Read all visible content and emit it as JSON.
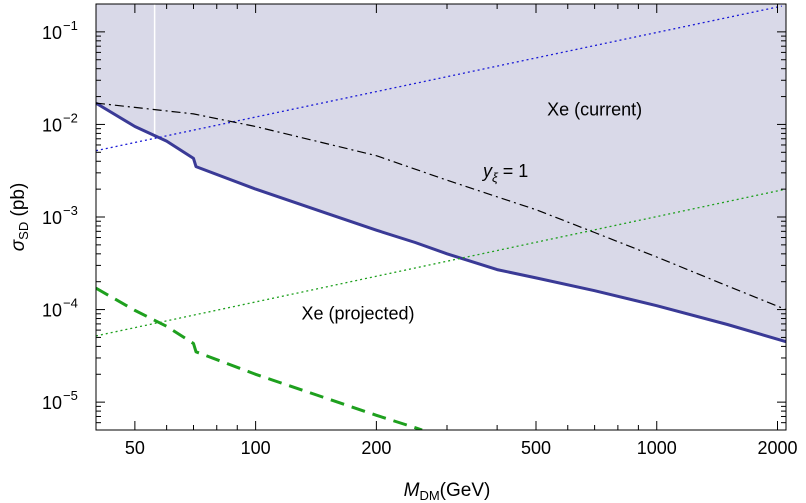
{
  "chart_data": {
    "type": "line",
    "xlabel": "M_DM(GeV)",
    "ylabel": "σ_SD (pb)",
    "xscale": "log",
    "yscale": "log",
    "xlim": [
      40,
      2100
    ],
    "ylim": [
      5e-06,
      0.2
    ],
    "grid": false,
    "x_ticks": [
      {
        "value": 50,
        "label": "50"
      },
      {
        "value": 100,
        "label": "100"
      },
      {
        "value": 200,
        "label": "200"
      },
      {
        "value": 500,
        "label": "500"
      },
      {
        "value": 1000,
        "label": "1000"
      },
      {
        "value": 2000,
        "label": "2000"
      }
    ],
    "y_ticks": [
      {
        "value": 1e-05,
        "label": "10",
        "exp": "−5"
      },
      {
        "value": 0.0001,
        "label": "10",
        "exp": "−4"
      },
      {
        "value": 0.001,
        "label": "10",
        "exp": "−3"
      },
      {
        "value": 0.01,
        "label": "10",
        "exp": "−2"
      },
      {
        "value": 0.1,
        "label": "10",
        "exp": "−1"
      }
    ],
    "region": {
      "fill": "#d9d9e8",
      "description": "shaded above the solid blue curve"
    },
    "series": [
      {
        "style": "solid",
        "color": "#3a3a96",
        "x": [
          40,
          50,
          60,
          70,
          71,
          100,
          150,
          200,
          250,
          300,
          400,
          500,
          700,
          1000,
          1500,
          2100
        ],
        "y": [
          0.017,
          0.0095,
          0.0066,
          0.0043,
          0.0035,
          0.002,
          0.0011,
          0.00072,
          0.00053,
          0.0004,
          0.00027,
          0.00022,
          0.00016,
          0.00011,
          6.9e-05,
          4.5e-05
        ]
      },
      {
        "style": "dashed",
        "color": "#1ea01e",
        "x": [
          40,
          50,
          60,
          70,
          71,
          100,
          150,
          200,
          250,
          260
        ],
        "y": [
          0.00017,
          9.8e-05,
          6.6e-05,
          4.3e-05,
          3.5e-05,
          2e-05,
          1.1e-05,
          7.2e-06,
          5.3e-06,
          5e-06
        ]
      },
      {
        "style": "dotted",
        "color": "#1a1ad6",
        "x": [
          40,
          2050
        ],
        "y": [
          0.0052,
          0.19
        ]
      },
      {
        "style": "dotted",
        "color": "#1ea01e",
        "x": [
          40,
          2100
        ],
        "y": [
          5.2e-05,
          0.002
        ]
      },
      {
        "style": "dashdot",
        "color": "#000000",
        "x": [
          40,
          70,
          100,
          200,
          300,
          500,
          700,
          1000,
          1500,
          2100
        ],
        "y": [
          0.017,
          0.013,
          0.0095,
          0.0046,
          0.0025,
          0.0012,
          0.00068,
          0.00037,
          0.00018,
          0.0001
        ]
      }
    ],
    "annotations": [
      {
        "text": "Xe (current)",
        "x": 700,
        "y": 0.0125
      },
      {
        "text_y": "y",
        "text_sub": "ξ",
        "text_rest": "= 1",
        "x": 420,
        "y": 0.0027
      },
      {
        "text": "Xe (projected)",
        "x": 180,
        "y": 7.8e-05
      }
    ],
    "vertical_line": {
      "x": 56,
      "color": "#ffffff"
    }
  }
}
